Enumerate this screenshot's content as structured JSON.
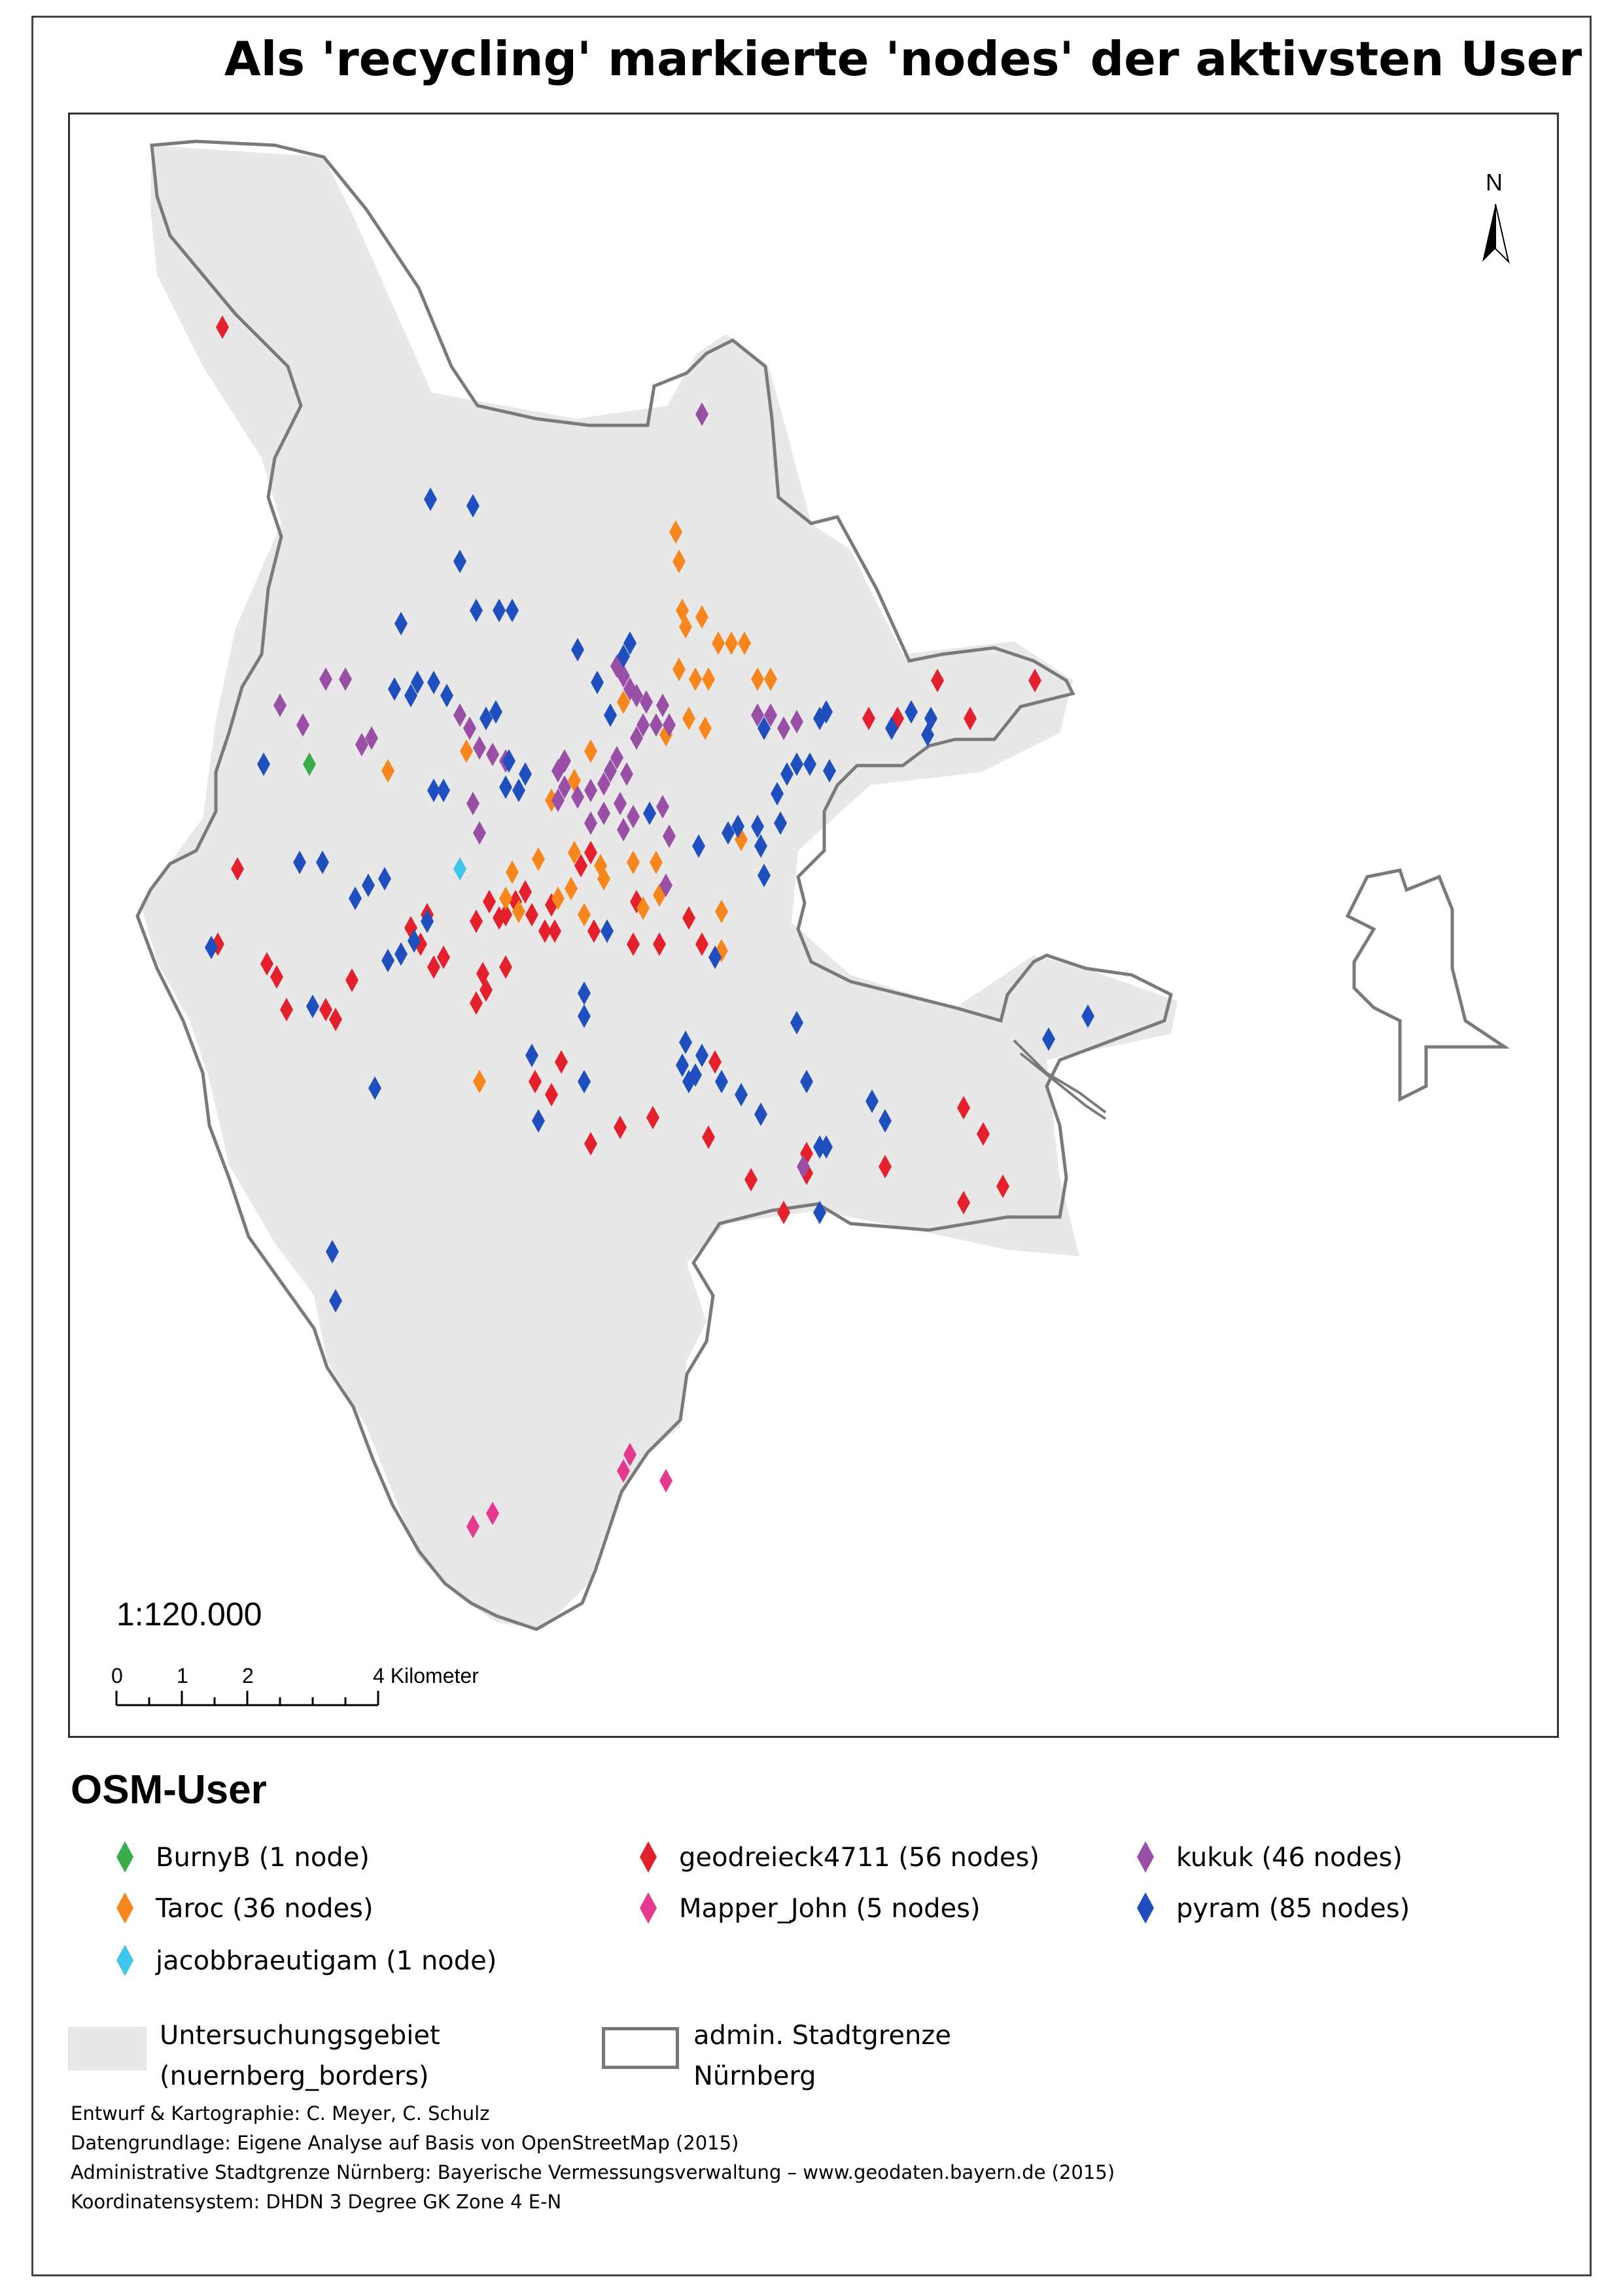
{
  "title": "Als 'recycling' markierte 'nodes' der aktivsten User",
  "map": {
    "scale_ratio": "1:120.000",
    "scalebar_labels": [
      "0",
      "1",
      "2",
      "4 Kilometer"
    ],
    "north_label": "N",
    "colors": {
      "study_area_fill": "#e8e8e8",
      "city_border": "#7a7a7a",
      "BurnyB": "#3cab4a",
      "Taroc": "#f7861c",
      "jacobbraeutigam": "#3ec6ec",
      "geodreieck4711": "#e3202b",
      "Mapper_John": "#e4398f",
      "kukuk": "#9a4fa6",
      "pyram": "#1f4fbf"
    }
  },
  "legend": {
    "heading": "OSM-User",
    "users": [
      {
        "id": "BurnyB",
        "label": "BurnyB (1 node)",
        "color": "#3cab4a"
      },
      {
        "id": "Taroc",
        "label": "Taroc (36 nodes)",
        "color": "#f7861c"
      },
      {
        "id": "jacobbraeutigam",
        "label": "jacobbraeutigam (1 node)",
        "color": "#3ec6ec"
      },
      {
        "id": "geodreieck4711",
        "label": "geodreieck4711 (56 nodes)",
        "color": "#e3202b"
      },
      {
        "id": "Mapper_John",
        "label": "Mapper_John (5 nodes)",
        "color": "#e4398f"
      },
      {
        "id": "kukuk",
        "label": "kukuk (46 nodes)",
        "color": "#9a4fa6"
      },
      {
        "id": "pyram",
        "label": "pyram (85 nodes)",
        "color": "#1f4fbf"
      }
    ],
    "study_area_line1": "Untersuchungsgebiet",
    "study_area_line2": "(nuernberg_borders)",
    "city_border_line1": "admin. Stadtgrenze",
    "city_border_line2": "Nürnberg"
  },
  "credits": [
    "Entwurf & Kartographie: C. Meyer, C. Schulz",
    "Datengrundlage: Eigene Analyse auf Basis von OpenStreetMap (2015)",
    "Administrative Stadtgrenze Nürnberg: Bayerische Vermessungsverwaltung –  www.geodaten.bayern.de (2015)",
    "Koordinatensystem: DHDN 3 Degree GK Zone 4 E-N"
  ]
}
